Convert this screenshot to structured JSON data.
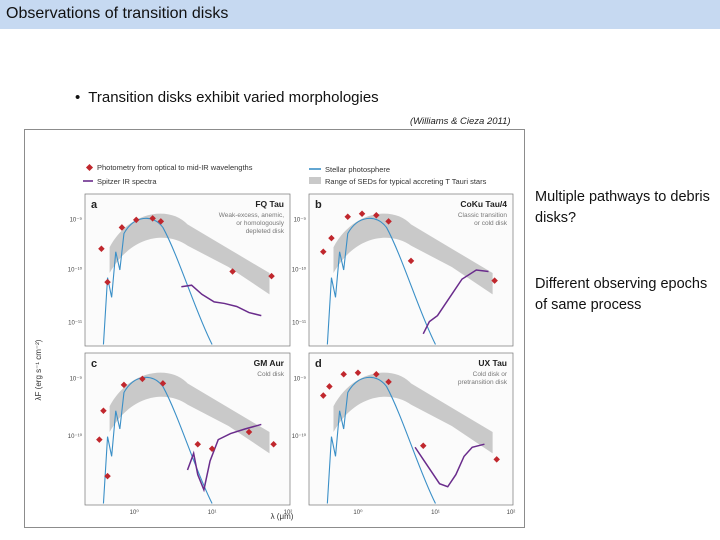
{
  "header": {
    "title": "Observations of transition disks"
  },
  "bullet": {
    "marker": "•",
    "text": "Transition disks exhibit varied morphologies"
  },
  "citation": "(Williams & Cieza 2011)",
  "side_notes": [
    "Multiple pathways to debris disks?",
    "Different observing epochs of same process"
  ],
  "figure": {
    "legend": {
      "photometry": "Photometry from optical to mid-IR wavelengths",
      "spitzer": "Spitzer IR spectra",
      "stellar": "Stellar photosphere",
      "range": "Range of SEDs for typical accreting T Tauri stars"
    },
    "y_label": "λF (erg s⁻¹ cm⁻²)",
    "x_label": "λ (μm)",
    "y_ticks": [
      "10⁻⁹",
      "10⁻¹⁰",
      "10⁻¹¹"
    ],
    "x_ticks": [
      "10⁰",
      "10¹",
      "10²"
    ],
    "colors": {
      "photometry": "#c0272d",
      "spitzer": "#6a2c8c",
      "stellar": "#3a8fc7",
      "range": "#c9c9c9"
    },
    "panels": [
      {
        "letter": "a",
        "name": "FQ Tau",
        "desc": [
          "Weak-excess, anemic,",
          "or homologously",
          "depleted disk"
        ]
      },
      {
        "letter": "b",
        "name": "CoKu Tau/4",
        "desc": [
          "Classic transition",
          "or cold disk"
        ]
      },
      {
        "letter": "c",
        "name": "GM Aur",
        "desc": [
          "Cold disk"
        ]
      },
      {
        "letter": "d",
        "name": "UX Tau",
        "desc": [
          "Cold disk or",
          "pretransition disk"
        ]
      }
    ]
  }
}
